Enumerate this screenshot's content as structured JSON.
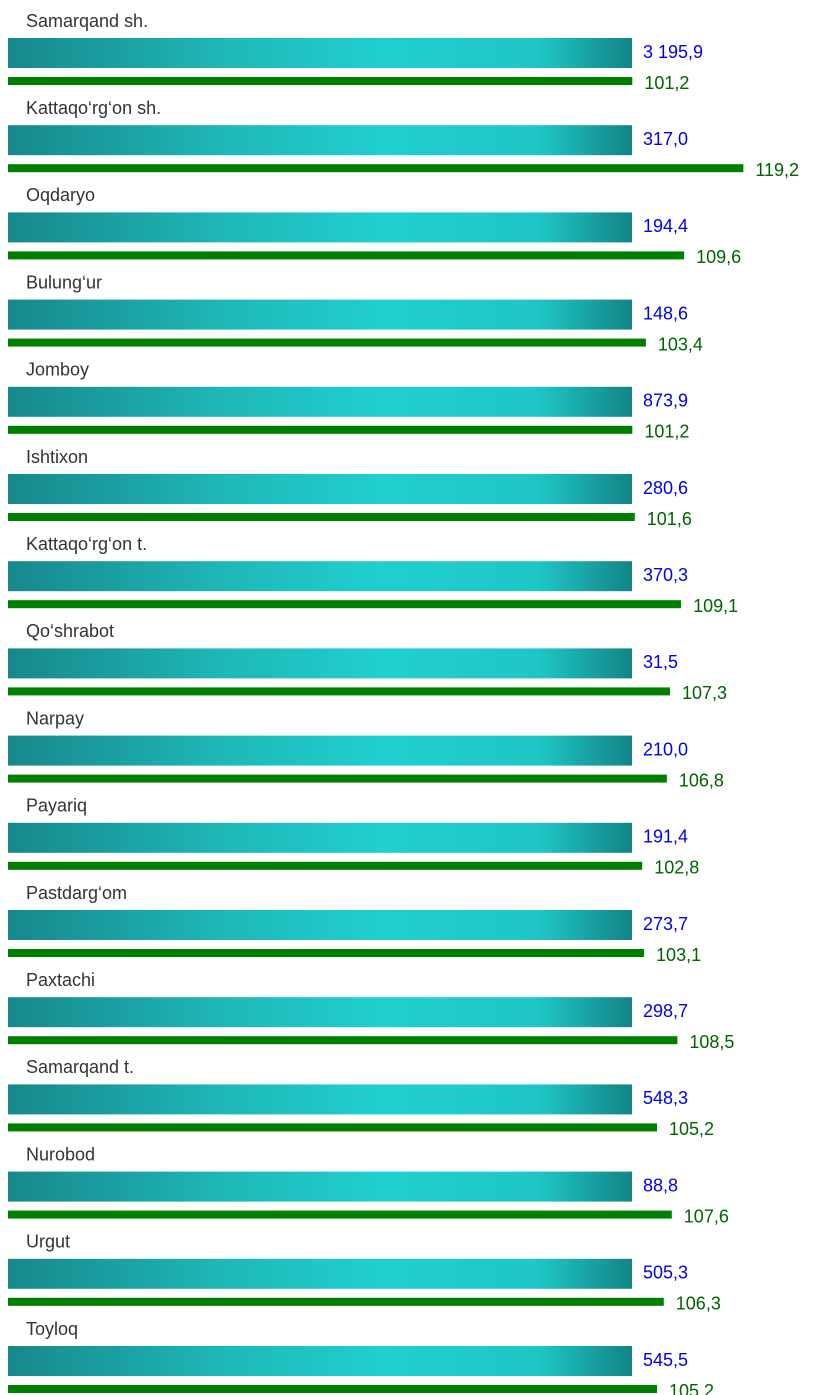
{
  "chart_data": {
    "type": "bar",
    "categories": [
      "Samarqand sh.",
      "Kattaqo‘rg‘on sh.",
      "Oqdaryo",
      "Bulung‘ur",
      "Jomboy",
      "Ishtixon",
      "Kattaqo‘rg‘on t.",
      "Qo‘shrabot",
      "Narpay",
      "Payariq",
      "Pastdarg‘om",
      "Paxtachi",
      "Samarqand t.",
      "Nurobod",
      "Urgut",
      "Toyloq"
    ],
    "series": [
      {
        "color": "#1fc9c9",
        "values": [
          3195.9,
          317.0,
          194.4,
          148.6,
          873.9,
          280.6,
          370.3,
          31.5,
          210.0,
          191.4,
          273.7,
          298.7,
          548.3,
          88.8,
          505.3,
          545.5
        ],
        "value_labels": [
          "3 195,9",
          "317,0",
          "194,4",
          "148,6",
          "873,9",
          "280,6",
          "370,3",
          "31,5",
          "210,0",
          "191,4",
          "273,7",
          "298,7",
          "548,3",
          "88,8",
          "505,3",
          "545,5"
        ]
      },
      {
        "color": "#008000",
        "values": [
          101.2,
          119.2,
          109.6,
          103.4,
          101.2,
          101.6,
          109.1,
          107.3,
          106.8,
          102.8,
          103.1,
          108.5,
          105.2,
          107.6,
          106.3,
          105.2
        ],
        "value_labels": [
          "101,2",
          "119,2",
          "109,6",
          "103,4",
          "101,2",
          "101,6",
          "109,1",
          "107,3",
          "106,8",
          "102,8",
          "103,1",
          "108,5",
          "105,2",
          "107,6",
          "106,3",
          "105,2"
        ]
      }
    ],
    "xlim": [
      0,
      130
    ]
  }
}
